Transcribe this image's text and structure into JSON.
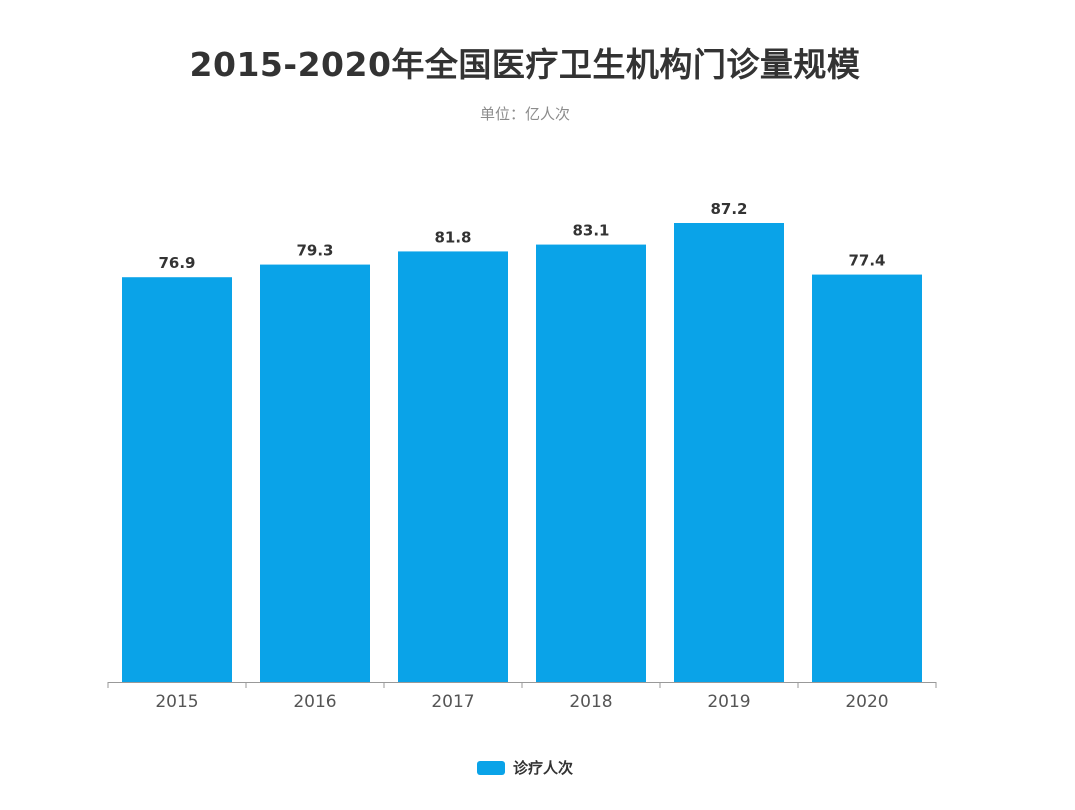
{
  "chart_data": {
    "type": "bar",
    "title": "2015-2020年全国医疗卫生机构门诊量规模",
    "subtitle": "单位：亿人次",
    "categories": [
      "2015",
      "2016",
      "2017",
      "2018",
      "2019",
      "2020"
    ],
    "series": [
      {
        "name": "诊疗人次",
        "values": [
          76.9,
          79.3,
          81.8,
          83.1,
          87.2,
          77.4
        ],
        "color": "#0aa3e8"
      }
    ],
    "value_labels": [
      "76.9",
      "79.3",
      "81.8",
      "83.1",
      "87.2",
      "77.4"
    ],
    "xlabel": "",
    "ylabel": "",
    "ylim": [
      0,
      87.2
    ],
    "grid": false,
    "legend_position": "bottom-center"
  }
}
